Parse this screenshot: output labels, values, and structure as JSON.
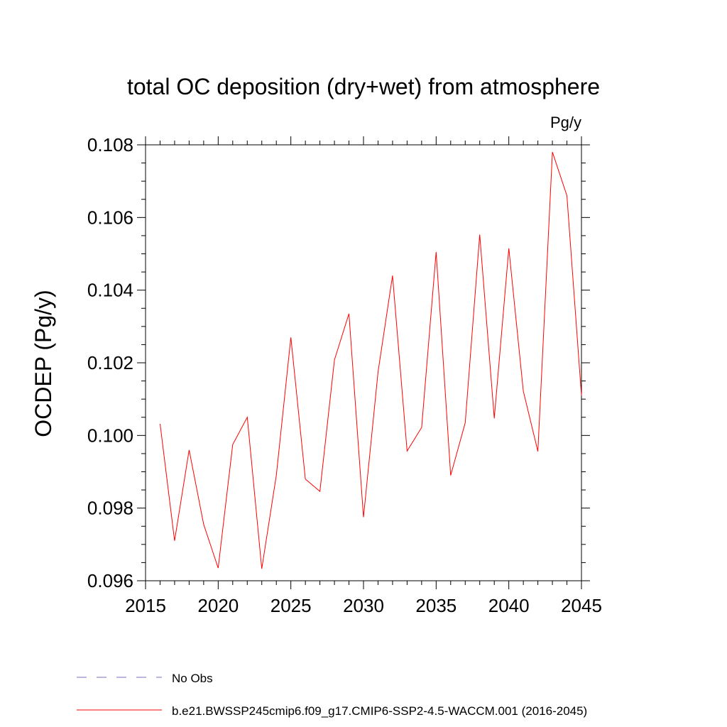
{
  "chart_data": {
    "type": "line",
    "title": "total OC deposition (dry+wet) from atmosphere",
    "units_label": "Pg/y",
    "ylabel": "OCDEP  (Pg/y)",
    "xlabel": "",
    "xlim": [
      2015,
      2045
    ],
    "ylim": [
      0.096,
      0.108
    ],
    "x_ticks": [
      2015,
      2020,
      2025,
      2030,
      2035,
      2040,
      2045
    ],
    "x_tick_labels": [
      "2015",
      "2020",
      "2025",
      "2030",
      "2035",
      "2040",
      "2045"
    ],
    "y_ticks": [
      0.096,
      0.098,
      0.1,
      0.102,
      0.104,
      0.106,
      0.108
    ],
    "y_tick_labels": [
      "0.096",
      "0.098",
      "0.100",
      "0.102",
      "0.104",
      "0.106",
      "0.108"
    ],
    "grid": false,
    "legend_position": "bottom",
    "series": [
      {
        "name": "b.e21.BWSSP245cmip6.f09_g17.CMIP6-SSP2-4.5-WACCM.001 (2016-2045)",
        "color": "#ff0000",
        "x": [
          2016,
          2017,
          2018,
          2019,
          2020,
          2021,
          2022,
          2023,
          2024,
          2025,
          2026,
          2027,
          2028,
          2029,
          2030,
          2031,
          2032,
          2033,
          2034,
          2035,
          2036,
          2037,
          2038,
          2039,
          2040,
          2041,
          2042,
          2043,
          2044,
          2045
        ],
        "values": [
          0.10032,
          0.0971,
          0.0996,
          0.09755,
          0.09635,
          0.09975,
          0.1005,
          0.09633,
          0.0989,
          0.1027,
          0.0988,
          0.09846,
          0.10208,
          0.10335,
          0.09775,
          0.10175,
          0.1044,
          0.09957,
          0.10022,
          0.10505,
          0.0989,
          0.10035,
          0.10553,
          0.10047,
          0.10515,
          0.10122,
          0.09956,
          0.1078,
          0.1066,
          0.1011
        ]
      }
    ],
    "legend": [
      {
        "label": "No Obs",
        "style": "dashed",
        "color": "#7b6fbf"
      },
      {
        "label": "b.e21.BWSSP245cmip6.f09_g17.CMIP6-SSP2-4.5-WACCM.001 (2016-2045)",
        "style": "solid",
        "color": "#ff0000"
      }
    ]
  }
}
